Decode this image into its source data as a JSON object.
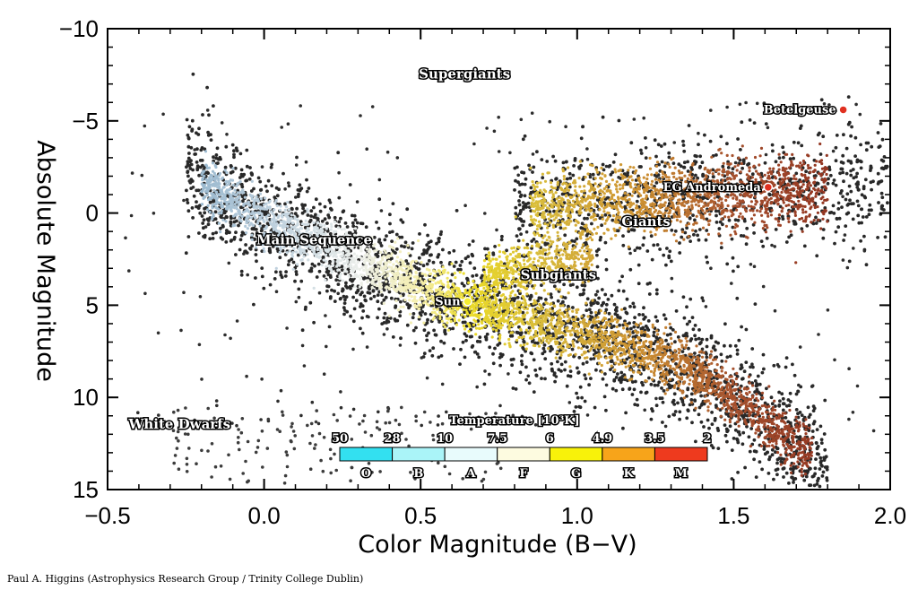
{
  "chart_data": {
    "type": "scatter",
    "title": "",
    "xlabel": "Color Magnitude (B−V)",
    "ylabel": "Absolute Magnitude",
    "xlim": [
      -0.5,
      2.0
    ],
    "ylim": [
      15,
      -10
    ],
    "y_axis_inverted": true,
    "x_ticks": [
      -0.5,
      0.0,
      0.5,
      1.0,
      1.5,
      2.0
    ],
    "x_tick_labels": [
      "−0.5",
      "0.0",
      "0.5",
      "1.0",
      "1.5",
      "2.0"
    ],
    "y_ticks": [
      -10,
      -5,
      0,
      5,
      10,
      15
    ],
    "y_tick_labels": [
      "−10",
      "−5",
      "0",
      "5",
      "10",
      "15"
    ],
    "grid": false,
    "regions": [
      {
        "label": "Supergiants",
        "x": 0.64,
        "y": -7.3
      },
      {
        "label": "Main Sequence",
        "x": 0.16,
        "y": 1.7
      },
      {
        "label": "Giants",
        "x": 1.22,
        "y": 0.7
      },
      {
        "label": "Subgiants",
        "x": 0.94,
        "y": 3.6
      },
      {
        "label": "White Dwarfs",
        "x": -0.27,
        "y": 11.7
      }
    ],
    "highlighted_stars": [
      {
        "name": "Betelgeuse",
        "x": 1.85,
        "y": -5.6
      },
      {
        "name": "EG Andromeda",
        "x": 1.61,
        "y": -1.4
      },
      {
        "name": "Sun",
        "x": 0.65,
        "y": 4.8
      }
    ],
    "colorbar": {
      "title": "Temperature [10³K]",
      "tick_labels": [
        "50",
        "28",
        "10",
        "7.5",
        "6",
        "4.9",
        "3.5",
        "2"
      ],
      "classes": [
        {
          "label": "O",
          "color": "#33e0f0"
        },
        {
          "label": "B",
          "color": "#aaf4f8"
        },
        {
          "label": "A",
          "color": "#e8fbfc"
        },
        {
          "label": "F",
          "color": "#fdfbe0"
        },
        {
          "label": "G",
          "color": "#f8f20a"
        },
        {
          "label": "K",
          "color": "#f7a41a"
        },
        {
          "label": "M",
          "color": "#ee3a1e"
        }
      ]
    }
  },
  "credit": "Paul A. Higgins (Astrophysics Research Group / Trinity College Dublin)"
}
